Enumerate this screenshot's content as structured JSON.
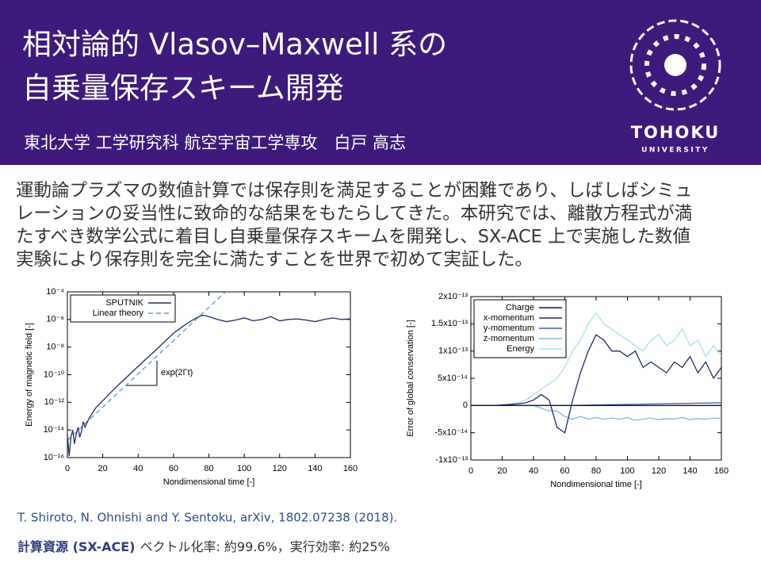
{
  "header": {
    "title_lines": [
      "相対論的 Vlasov–Maxwell 系の",
      "自乗量保存スキーム開発"
    ],
    "affiliation": "東北大学 工学研究科 航空宇宙工学専攻　白戸 高志",
    "logo_text": "TOHOKU",
    "logo_subtext": "UNIVERSITY"
  },
  "body": {
    "lines": [
      "運動論プラズマの数値計算では保存則を満足することが困難であり、しばしばシミュ",
      "レーションの妥当性に致命的な結果をもたらしてきた。本研究では、離散方程式が満",
      "たすべき数学公式に着目し自乗量保存スキームを開発し、SX-ACE 上で実施した数値",
      "実験により保存則を完全に満たすことを世界で初めて実証した。"
    ]
  },
  "citation": "T. Shiroto, N. Ohnishi and Y. Sentoku, arXiv, 1802.07238 (2018).",
  "resources": {
    "label": "計算資源 (SX-ACE)",
    "text": "ベクトル化率: 約99.6%，実行効率: 約25%"
  },
  "chart_data": [
    {
      "type": "line",
      "xlabel": "Nondimensional time [-]",
      "ylabel": "Energy of magnetic field [-]",
      "annotation": "exp(2Γt)",
      "ylog": true,
      "legend": "upper left",
      "xlim": [
        0,
        160
      ],
      "xticks": [
        0,
        20,
        40,
        60,
        80,
        100,
        120,
        140,
        160
      ],
      "ylim": [
        1e-16,
        0.0001
      ],
      "yticks": [
        {
          "value": 1e-16,
          "label": "10⁻¹⁶"
        },
        {
          "value": 1e-14,
          "label": "10⁻¹⁴"
        },
        {
          "value": 1e-12,
          "label": "10⁻¹²"
        },
        {
          "value": 1e-10,
          "label": "10⁻¹⁰"
        },
        {
          "value": 1e-08,
          "label": "10⁻⁸"
        },
        {
          "value": 1e-06,
          "label": "10⁻⁶"
        },
        {
          "value": 0.0001,
          "label": "10⁻⁴"
        }
      ],
      "series": [
        {
          "name": "SPUTNIK",
          "color": "#1f2d6b",
          "x": [
            0,
            1,
            2,
            3,
            4,
            5,
            6,
            7,
            8,
            9,
            10,
            12,
            14,
            16,
            20,
            25,
            30,
            35,
            40,
            45,
            50,
            55,
            60,
            65,
            70,
            73,
            76,
            78,
            80,
            85,
            90,
            95,
            100,
            105,
            110,
            115,
            120,
            125,
            130,
            135,
            140,
            145,
            150,
            155,
            160
          ],
          "values": [
            5e-15,
            1.3e-16,
            3e-15,
            1e-14,
            1e-15,
            5e-15,
            1.6e-14,
            3e-15,
            8e-15,
            4e-14,
            1.6e-14,
            6e-14,
            1.6e-13,
            4e-13,
            1.3e-12,
            6e-12,
            2.5e-11,
            1e-10,
            4e-10,
            1.6e-09,
            6e-09,
            2.5e-08,
            1e-07,
            3e-07,
            8e-07,
            1.3e-06,
            2e-06,
            1.9e-06,
            1.6e-06,
            1e-06,
            7e-07,
            9e-07,
            1.3e-06,
            8e-07,
            1e-06,
            1.6e-06,
            8e-07,
            1e-06,
            1.1e-06,
            9e-07,
            7e-07,
            1e-06,
            1.3e-06,
            1e-06,
            1.1e-06
          ]
        },
        {
          "name": "Linear theory",
          "color": "#5b9bd5",
          "dash": true,
          "x": [
            0,
            89
          ],
          "values": [
            1.8e-15,
            9e-05
          ]
        }
      ]
    },
    {
      "type": "line",
      "xlabel": "Nondimensional time [-]",
      "ylabel": "Error of global conservation [-]",
      "legend": "upper left",
      "xlim": [
        0,
        160
      ],
      "xticks": [
        0,
        20,
        40,
        60,
        80,
        100,
        120,
        140,
        160
      ],
      "ylim": [
        -1e-13,
        2e-13
      ],
      "yticks": [
        {
          "value": -1e-13,
          "label": "-1x10⁻¹³"
        },
        {
          "value": -5e-14,
          "label": "-5x10⁻¹⁴"
        },
        0,
        {
          "value": 5e-14,
          "label": "5x10⁻¹⁴"
        },
        {
          "value": 1e-13,
          "label": "1x10⁻¹³"
        },
        {
          "value": 1.5e-13,
          "label": "1.5x10⁻¹³"
        },
        {
          "value": 2e-13,
          "label": "2x10⁻¹³"
        }
      ],
      "x": [
        0,
        5,
        10,
        15,
        20,
        25,
        30,
        35,
        40,
        45,
        50,
        55,
        60,
        65,
        70,
        75,
        80,
        85,
        90,
        95,
        100,
        105,
        110,
        115,
        120,
        125,
        130,
        135,
        140,
        145,
        150,
        155,
        160
      ],
      "series": [
        {
          "name": "Charge",
          "color": "#14123d",
          "values": [
            0,
            0,
            0,
            0,
            0,
            0,
            0,
            0,
            0,
            0,
            0,
            0,
            0,
            0,
            0,
            0,
            0,
            0,
            0,
            0,
            0,
            0,
            0,
            0,
            0,
            0,
            0,
            0,
            0,
            0,
            0,
            0,
            0
          ]
        },
        {
          "name": "x-momentum",
          "color": "#1e2a6e",
          "values": [
            0,
            0,
            0,
            0,
            1e-15,
            2e-15,
            3e-15,
            5e-15,
            1e-14,
            2e-14,
            1e-14,
            -4e-14,
            -5e-14,
            1e-14,
            6e-14,
            1e-13,
            1.3e-13,
            1.2e-13,
            1e-13,
            1e-13,
            9e-14,
            1e-13,
            7e-14,
            8e-14,
            7e-14,
            6e-14,
            8e-14,
            7e-14,
            9e-14,
            6e-14,
            8e-14,
            5e-14,
            7e-14
          ]
        },
        {
          "name": "y-momentum",
          "color": "#3d5fb5",
          "values": [
            0,
            0,
            0,
            0,
            0,
            0,
            0,
            0,
            0,
            0,
            0,
            0,
            0,
            3e-16,
            5e-16,
            8e-16,
            1e-15,
            1.3e-15,
            1.5e-15,
            1.8e-15,
            2e-15,
            2.3e-15,
            2.5e-15,
            2.8e-15,
            3e-15,
            3.3e-15,
            3.5e-15,
            3.8e-15,
            4e-15,
            4.3e-15,
            4.5e-15,
            4.8e-15,
            5e-15
          ]
        },
        {
          "name": "z-momentum",
          "color": "#7fb8e3",
          "values": [
            0,
            0,
            0,
            0,
            0,
            0,
            0,
            0,
            0,
            -5e-15,
            -1e-14,
            -1e-14,
            -2e-14,
            -2.5e-14,
            -2e-14,
            -2.5e-14,
            -2.2e-14,
            -2.5e-14,
            -2.3e-14,
            -2.5e-14,
            -2.2e-14,
            -2.7e-14,
            -2.5e-14,
            -2.3e-14,
            -2.6e-14,
            -2.4e-14,
            -2.5e-14,
            -2.2e-14,
            -2.6e-14,
            -2.4e-14,
            -2.5e-14,
            -2.3e-14,
            -2.4e-14
          ]
        },
        {
          "name": "Energy",
          "color": "#aee0ea",
          "values": [
            0,
            0,
            0,
            0,
            0,
            2e-15,
            5e-15,
            1e-14,
            2e-14,
            3e-14,
            4e-14,
            5e-14,
            7e-14,
            1e-13,
            1.2e-13,
            1.5e-13,
            1.7e-13,
            1.5e-13,
            1.4e-13,
            1.3e-13,
            1.2e-13,
            1.1e-13,
            1e-13,
            1.2e-13,
            1.3e-13,
            1.1e-13,
            1.2e-13,
            1.4e-13,
            1.1e-13,
            1.2e-13,
            9e-14,
            1.1e-13,
            9e-14
          ]
        }
      ]
    }
  ]
}
